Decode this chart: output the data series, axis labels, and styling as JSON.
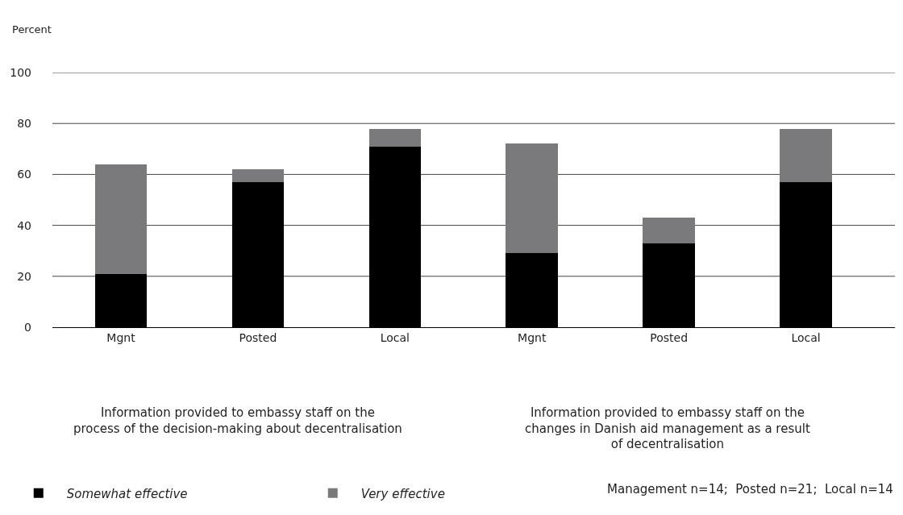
{
  "chart_data": {
    "type": "bar",
    "stacked": true,
    "ylabel": "Percent",
    "categories": [
      "Mgnt",
      "Posted",
      "Local",
      "Mgnt",
      "Posted",
      "Local"
    ],
    "series": [
      {
        "name": "Somewhat effective",
        "color": "#000000",
        "values": [
          21,
          57,
          71,
          29,
          33,
          57
        ]
      },
      {
        "name": "Very effective",
        "color": "#7a7a7c",
        "values": [
          43,
          5,
          7,
          43,
          10,
          21
        ]
      }
    ],
    "ylim": [
      0,
      100
    ],
    "yticks": [
      0,
      20,
      40,
      60,
      80,
      100
    ],
    "grid": "y",
    "legend": "bottom left",
    "annotations": [
      "Information provided to embassy staff on the\nprocess of the decision-making about decentralisation",
      "Information provided to embassy staff on the\nchanges in Danish aid management as a result\nof decentralisation",
      "Management n=14;  Posted n=21;  Local n=14"
    ]
  }
}
